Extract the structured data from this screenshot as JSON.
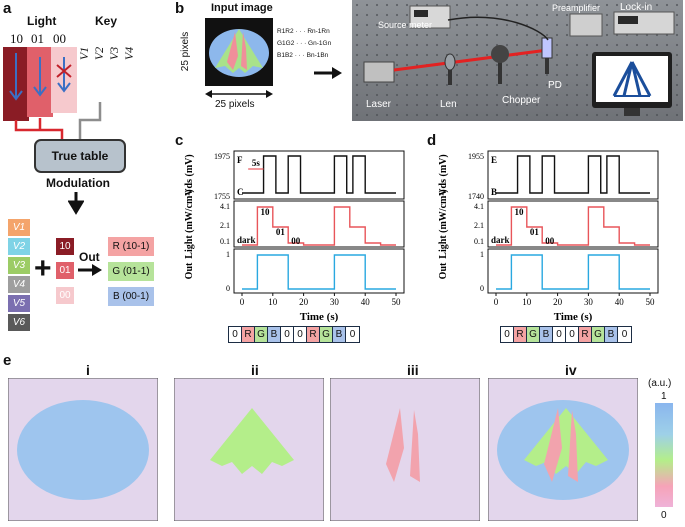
{
  "panels": {
    "a": "a",
    "b": "b",
    "c": "c",
    "d": "d",
    "e": "e"
  },
  "a": {
    "light_title": "Light",
    "key_title": "Key",
    "light_codes": [
      "10",
      "01",
      "00"
    ],
    "key_labels": [
      "V1",
      "V2",
      "V3",
      "V4"
    ],
    "truth_table": "True table",
    "modulation": "Modulation",
    "v_inputs": [
      "V1",
      "V2",
      "V3",
      "V4",
      "V5",
      "V6"
    ],
    "v_colors": [
      "#f4a46b",
      "#7fd3e6",
      "#9ccc65",
      "#9e9e9e",
      "#7b6fb0",
      "#595959"
    ],
    "codes": [
      "10",
      "01",
      "00"
    ],
    "code_colors": [
      "#8a1c25",
      "#e0606a",
      "#f6c9cd"
    ],
    "out_label": "Out",
    "outputs": [
      "R (10-1)",
      "G (01-1)",
      "B (00-1)"
    ],
    "output_colors": [
      "#f4a3a3",
      "#b6e39a",
      "#a9c2ea"
    ]
  },
  "b": {
    "input_title": "Input image",
    "pixels_v": "25 pixels",
    "pixels_h": "25 pixels",
    "matrix_rows": [
      "R1R2 · · · Rn-1Rn",
      "G1G2 · · · Gn-1Gn",
      "B1B2 · · · Bn-1Bn"
    ],
    "setup_labels": {
      "source_meter": "Source meter",
      "preamplifier": "Preamplifier",
      "lockin": "Lock-in",
      "pd": "PD",
      "laser": "Laser",
      "len": "Len",
      "chopper": "Chopper"
    }
  },
  "c": {
    "vds_label": "Vds (mV)",
    "vds_ticks": [
      "1975",
      "1755"
    ],
    "levels": [
      "F",
      "C"
    ],
    "step": "5s",
    "light_label": "Light (mW/cm²)",
    "light_ticks": [
      "4.1",
      "2.1",
      "0.1"
    ],
    "light_codes": [
      "10",
      "01",
      "00"
    ],
    "dark": "dark",
    "out_label": "Out",
    "out_ticks": [
      "1",
      "0"
    ],
    "x_ticks": [
      "0",
      "10",
      "20",
      "30",
      "40",
      "50"
    ],
    "xlabel": "Time (s)",
    "sequence": [
      "0",
      "R",
      "G",
      "B",
      "0",
      "0",
      "R",
      "G",
      "B",
      "0"
    ]
  },
  "d": {
    "vds_label": "Vds (mV)",
    "vds_ticks": [
      "1955",
      "1740"
    ],
    "levels": [
      "E",
      "B"
    ],
    "light_label": "Light (mW/cm²)",
    "light_ticks": [
      "4.1",
      "2.1",
      "0.1"
    ],
    "light_codes": [
      "10",
      "01",
      "00"
    ],
    "dark": "dark",
    "out_label": "Out",
    "out_ticks": [
      "1",
      "0"
    ],
    "x_ticks": [
      "0",
      "10",
      "20",
      "30",
      "40",
      "50"
    ],
    "xlabel": "Time (s)",
    "sequence": [
      "0",
      "R",
      "G",
      "B",
      "0",
      "0",
      "R",
      "G",
      "B",
      "0"
    ]
  },
  "e": {
    "sublabels": [
      "i",
      "ii",
      "iii",
      "iv"
    ],
    "colorbar_unit": "(a.u.)",
    "colorbar_max": "1",
    "colorbar_min": "0"
  },
  "colors": {
    "black_trace": "#111111",
    "red_trace": "#e8555a",
    "blue_trace": "#29a8e0",
    "bg_pink": "#e3d6ec",
    "blue_region": "#9ec5ee",
    "green_region": "#b4ee8a",
    "red_region": "#f2a3ad"
  }
}
